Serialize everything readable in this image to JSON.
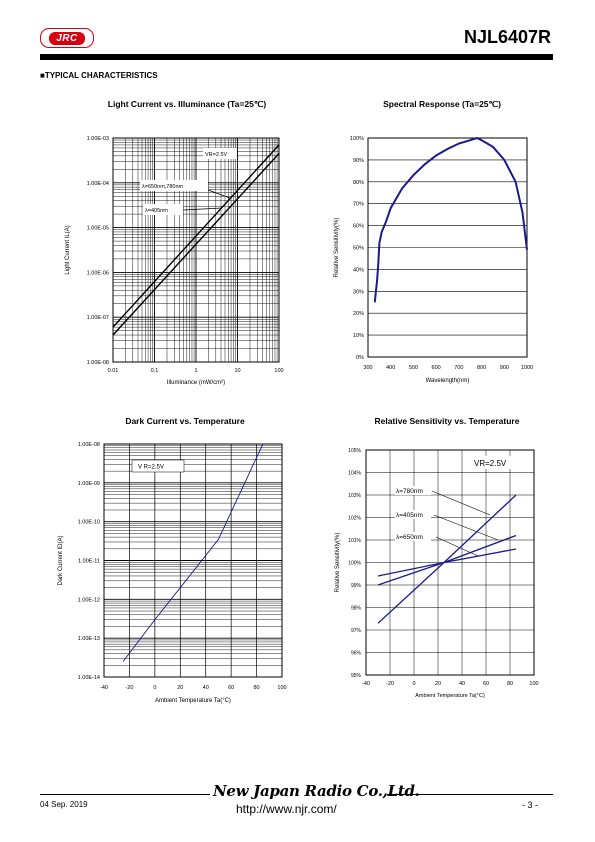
{
  "header": {
    "logo_text": "JRC",
    "part_number": "NJL6407R"
  },
  "section_title": "■TYPICAL CHARACTERISTICS",
  "footer": {
    "company": "New Japan Radio Co.,Ltd.",
    "date": "04 Sep. 2019",
    "url": "http://www.njr.com/",
    "page": "- 3 -"
  },
  "chart_data": [
    {
      "type": "line",
      "title": "Light Current vs. Illuminance (Ta=25℃)",
      "xlabel": "Illuminance  (mW/cm²)",
      "ylabel": "Light Current IL(A)",
      "xscale": "log",
      "yscale": "log",
      "xlim": [
        0.01,
        100
      ],
      "ylim": [
        1e-08,
        0.001
      ],
      "xticks": [
        "0.01",
        "0.1",
        "1",
        "10",
        "100"
      ],
      "yticks": [
        "1.00E-03",
        "1.00E-04",
        "1.00E-05",
        "1.00E-06",
        "1.00E-07",
        "1.00E-08"
      ],
      "grid": true,
      "annotations": [
        "VR=2.5V",
        "λ=650nm,780nm",
        "λ=405nm"
      ],
      "series": [
        {
          "name": "λ=650nm,780nm",
          "x": [
            0.01,
            100
          ],
          "y": [
            6e-08,
            0.0007
          ]
        },
        {
          "name": "λ=405nm",
          "x": [
            0.01,
            100
          ],
          "y": [
            4e-08,
            0.00045
          ]
        }
      ]
    },
    {
      "type": "line",
      "title": "Spectral Response (Ta=25℃)",
      "xlabel": "Wavelength(nm)",
      "ylabel": "Relative Sensitivity(%)",
      "xlim": [
        300,
        1000
      ],
      "ylim": [
        0,
        100
      ],
      "xticks": [
        "300",
        "400",
        "500",
        "600",
        "700",
        "800",
        "900",
        "1000"
      ],
      "yticks": [
        "100%",
        "90%",
        "80%",
        "70%",
        "60%",
        "50%",
        "40%",
        "30%",
        "20%",
        "10%",
        "0%"
      ],
      "grid": "horizontal",
      "series": [
        {
          "x": [
            330,
            335,
            340,
            345,
            350,
            360,
            380,
            400,
            450,
            500,
            550,
            600,
            650,
            700,
            750,
            780,
            800,
            850,
            900,
            950,
            980,
            1000
          ],
          "y": [
            25,
            30,
            35,
            42,
            52,
            57,
            62,
            68,
            77,
            83,
            88,
            92,
            95,
            97.5,
            99,
            100,
            99,
            96,
            90,
            80,
            66,
            49
          ]
        }
      ]
    },
    {
      "type": "line",
      "title": "Dark Current vs. Temperature",
      "xlabel": "Ambient Temperature Ta(°C)",
      "ylabel": "Dark Current ID(A)",
      "yscale": "log",
      "xlim": [
        -40,
        100
      ],
      "ylim": [
        1e-14,
        1e-08
      ],
      "xticks": [
        "-40",
        "-20",
        "0",
        "20",
        "40",
        "60",
        "80",
        "100"
      ],
      "yticks": [
        "1.00E-08",
        "1.00E-09",
        "1.00E-10",
        "1.00E-11",
        "1.00E-12",
        "1.00E-13",
        "1.00E-14"
      ],
      "grid": true,
      "annotations": [
        "V R=2.5V"
      ],
      "series": [
        {
          "x": [
            -25,
            0,
            25,
            50,
            85
          ],
          "y": [
            2.5e-14,
            3e-13,
            3.2e-12,
            3.5e-11,
            1e-08
          ]
        }
      ]
    },
    {
      "type": "line",
      "title": "Relative Sensitivity vs. Temperature",
      "xlabel": "Ambient Temperature Ta(°C)",
      "ylabel": "Relative Sensitivity(%)",
      "xlim": [
        -40,
        100
      ],
      "ylim": [
        95,
        105
      ],
      "xticks": [
        "-40",
        "-20",
        "0",
        "20",
        "40",
        "60",
        "80",
        "100"
      ],
      "yticks": [
        "105%",
        "104%",
        "103%",
        "102%",
        "101%",
        "100%",
        "99%",
        "98%",
        "97%",
        "96%",
        "95%"
      ],
      "grid": true,
      "annotations": [
        "VR=2.5V",
        "λ=780nm",
        "λ=405nm",
        "λ=650nm"
      ],
      "series": [
        {
          "name": "λ=780nm",
          "x": [
            -30,
            25,
            85
          ],
          "y": [
            97.3,
            100,
            103
          ]
        },
        {
          "name": "λ=405nm",
          "x": [
            -30,
            25,
            85
          ],
          "y": [
            99.4,
            100,
            100.6
          ]
        },
        {
          "name": "λ=650nm",
          "x": [
            -30,
            25,
            85
          ],
          "y": [
            99,
            100,
            101.2
          ]
        }
      ]
    }
  ]
}
